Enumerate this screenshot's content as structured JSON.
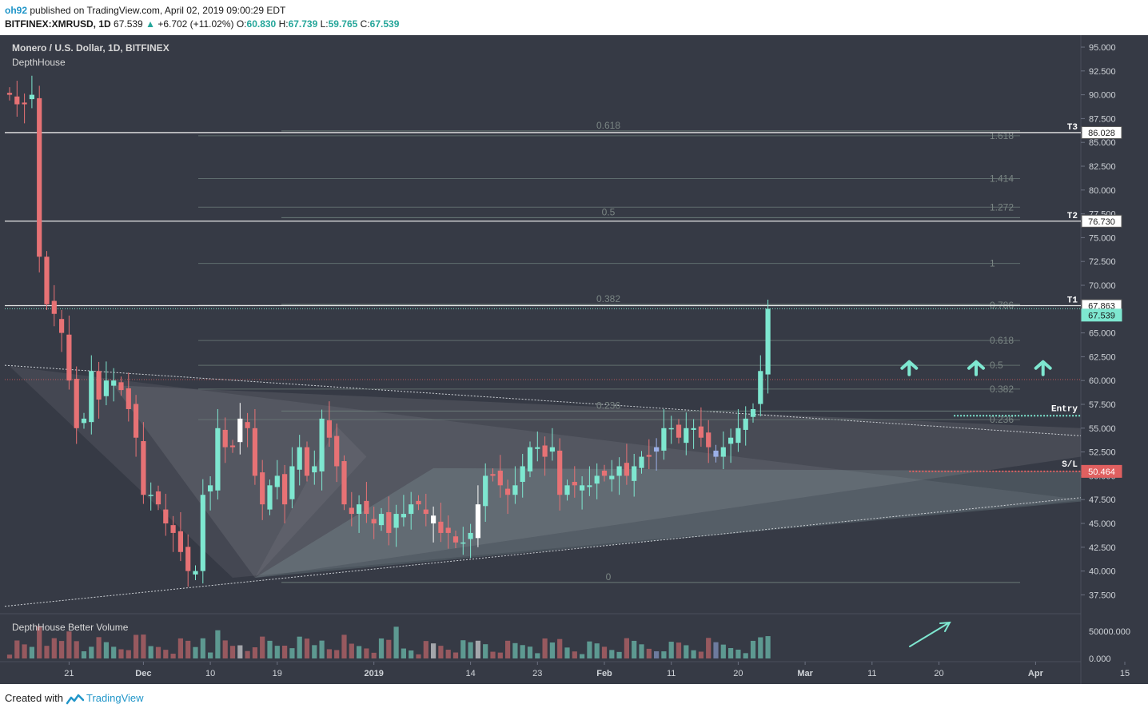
{
  "header": {
    "author": "oh92",
    "published": "published on TradingView.com, April 02, 2019 09:00:29 EDT",
    "symbol": "BITFINEX:XMRUSD, 1D",
    "last": "67.539",
    "change": "+6.702 (+11.02%)",
    "o_label": "O:",
    "o": "60.830",
    "h_label": "H:",
    "h": "67.739",
    "l_label": "L:",
    "l": "59.765",
    "c_label": "C:",
    "c": "67.539"
  },
  "footer": {
    "created_with": "Created with",
    "brand": "TradingView"
  },
  "colors": {
    "background": "#363a45",
    "bull": "#7ee7d0",
    "bear": "#e77275",
    "neutral_bull": "#ffffff",
    "blue_candle": "#9bb0e8",
    "target_line": "#e8e8e8",
    "fib_line": "#6b7a78",
    "fib_text": "#7a8583",
    "entry": "#7ee7d0",
    "stoploss": "#e06060"
  },
  "chart_data": [
    {
      "type": "candlestick",
      "title": "Monero / U.S. Dollar, 1D, BITFINEX",
      "indicator": "DepthHouse",
      "y_axis": {
        "ticks": [
          "95.000",
          "92.500",
          "90.000",
          "87.500",
          "85.000",
          "82.500",
          "80.000",
          "77.500",
          "75.000",
          "72.500",
          "70.000",
          "67.500",
          "65.000",
          "62.500",
          "60.000",
          "57.500",
          "55.000",
          "52.500",
          "50.000",
          "47.500",
          "45.000",
          "42.500",
          "40.000",
          "37.500"
        ],
        "range": [
          35.5,
          96.5
        ]
      },
      "x_axis": {
        "ticks": [
          "21",
          "Dec",
          "10",
          "19",
          "2019",
          "14",
          "23",
          "Feb",
          "11",
          "20",
          "Mar",
          "11",
          "20",
          "Apr",
          "15"
        ],
        "tick_days": [
          8,
          18,
          27,
          36,
          49,
          62,
          71,
          80,
          89,
          98,
          107,
          116,
          125,
          138,
          150
        ]
      },
      "ohlc_close_series": [
        90,
        89,
        89,
        90,
        73,
        68,
        67,
        65,
        60,
        55,
        56,
        61,
        58,
        60,
        60,
        59,
        57,
        54,
        48,
        48,
        47,
        45,
        44,
        42,
        40,
        40,
        48,
        49,
        55,
        53,
        53,
        56,
        55,
        50,
        47,
        49,
        50,
        47,
        51,
        53,
        50,
        51,
        56,
        54,
        51,
        47,
        46,
        47,
        46,
        45,
        46,
        44,
        46,
        46,
        47,
        47,
        46,
        45,
        44,
        44,
        43,
        43,
        44,
        47,
        50,
        50,
        49,
        48,
        49,
        51,
        53,
        53,
        52,
        53,
        48,
        49,
        49,
        49,
        49,
        50,
        50,
        50,
        51,
        50,
        51,
        52,
        52,
        53,
        55,
        55,
        54,
        55,
        55,
        54,
        53,
        52,
        53,
        54,
        55,
        56,
        57,
        61,
        67.539
      ],
      "price_labels": [
        {
          "name": "T3",
          "value": "86.028"
        },
        {
          "name": "T2",
          "value": "76.730"
        },
        {
          "name": "T1",
          "value": "67.863"
        },
        {
          "name": "last",
          "value": "67.539"
        },
        {
          "name": "S/L",
          "value": "50.464"
        }
      ],
      "entry_label": "Entry",
      "fib_left": [
        {
          "label": "0.618",
          "price": 86.2
        },
        {
          "label": "0.5",
          "price": 77.1
        },
        {
          "label": "0.382",
          "price": 68.0
        },
        {
          "label": "0.236",
          "price": 56.8
        },
        {
          "label": "0",
          "price": 38.8
        }
      ],
      "fib_right": [
        {
          "label": "1.618",
          "price": 85.7
        },
        {
          "label": "1.414",
          "price": 81.2
        },
        {
          "label": "1.272",
          "price": 78.2
        },
        {
          "label": "1",
          "price": 72.3
        },
        {
          "label": "0.786",
          "price": 67.9
        },
        {
          "label": "0.618",
          "price": 64.2
        },
        {
          "label": "0.5",
          "price": 61.6
        },
        {
          "label": "0.382",
          "price": 59.1
        },
        {
          "label": "0.236",
          "price": 55.9
        }
      ]
    },
    {
      "type": "bar",
      "title": "DepthHouse Better Volume",
      "y_axis": {
        "ticks": [
          "50000.000",
          "0.000"
        ],
        "range": [
          0,
          68000
        ]
      }
    }
  ]
}
